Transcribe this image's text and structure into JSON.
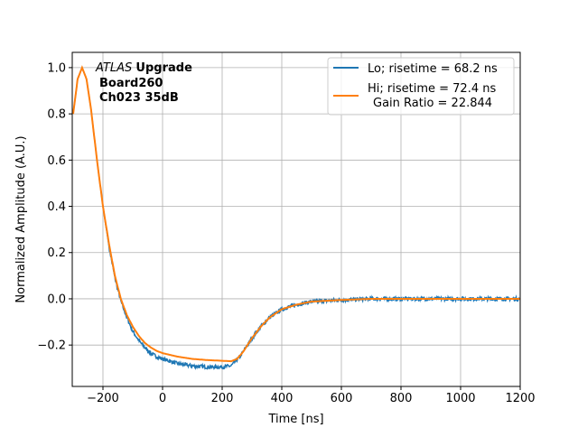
{
  "chart_data": {
    "type": "line",
    "title": "",
    "xlabel": "Time [ns]",
    "ylabel": "Normalized Amplitude (A.U.)",
    "xlim": [
      -303,
      1200
    ],
    "ylim": [
      -0.379,
      1.066
    ],
    "xticks": [
      -200,
      0,
      200,
      400,
      600,
      800,
      1000,
      1200
    ],
    "xtick_labels": [
      "−200",
      "0",
      "200",
      "400",
      "600",
      "800",
      "1000",
      "1200"
    ],
    "yticks": [
      -0.2,
      0.0,
      0.2,
      0.4,
      0.6,
      0.8,
      1.0
    ],
    "ytick_labels": [
      "−0.2",
      "0.0",
      "0.2",
      "0.4",
      "0.6",
      "0.8",
      "1.0"
    ],
    "grid": true,
    "legend_position": "top-right",
    "annotation": {
      "italic": "ATLAS",
      "bold": "Upgrade",
      "line2": "Board260",
      "line3": "Ch023 35dB"
    },
    "series": [
      {
        "name": "Lo; risetime = 68.2 ns",
        "color": "#1f77b4",
        "noise": 0.008,
        "x": [
          -300,
          -285,
          -270,
          -255,
          -240,
          -220,
          -200,
          -180,
          -160,
          -140,
          -120,
          -100,
          -80,
          -60,
          -40,
          -20,
          0,
          50,
          100,
          150,
          200,
          230,
          260,
          300,
          330,
          360,
          400,
          450,
          500,
          600,
          700,
          1200
        ],
        "y": [
          0.8,
          0.95,
          1.0,
          0.95,
          0.82,
          0.6,
          0.4,
          0.23,
          0.09,
          -0.01,
          -0.08,
          -0.14,
          -0.18,
          -0.21,
          -0.235,
          -0.25,
          -0.26,
          -0.28,
          -0.29,
          -0.295,
          -0.295,
          -0.29,
          -0.25,
          -0.17,
          -0.12,
          -0.08,
          -0.045,
          -0.025,
          -0.012,
          -0.005,
          0.0,
          0.0
        ]
      },
      {
        "name": "Hi; risetime = 72.4 ns",
        "name_line2": "Gain Ratio = 22.844",
        "color": "#ff7f0e",
        "noise": 0.0,
        "x": [
          -300,
          -285,
          -270,
          -255,
          -240,
          -220,
          -200,
          -180,
          -160,
          -140,
          -120,
          -100,
          -80,
          -60,
          -40,
          -20,
          0,
          50,
          100,
          150,
          200,
          230,
          250,
          270,
          300,
          330,
          360,
          400,
          450,
          500,
          600,
          700,
          1200
        ],
        "y": [
          0.8,
          0.95,
          1.0,
          0.95,
          0.82,
          0.6,
          0.4,
          0.24,
          0.1,
          0.0,
          -0.07,
          -0.12,
          -0.16,
          -0.19,
          -0.21,
          -0.225,
          -0.235,
          -0.25,
          -0.26,
          -0.265,
          -0.268,
          -0.27,
          -0.26,
          -0.23,
          -0.17,
          -0.12,
          -0.08,
          -0.045,
          -0.025,
          -0.012,
          -0.005,
          0.0,
          0.0
        ]
      }
    ]
  }
}
